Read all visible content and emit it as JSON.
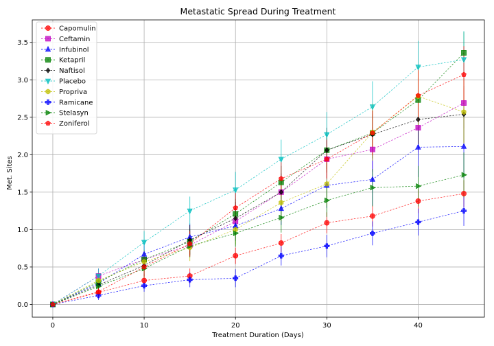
{
  "chart_data": {
    "type": "line",
    "title": "Metastatic Spread During Treatment",
    "xlabel": "Treatment Duration (Days)",
    "ylabel": "Met. Sites",
    "xlim": [
      -2.25,
      47.25
    ],
    "ylim": [
      -0.17,
      3.8
    ],
    "xticks": [
      0,
      10,
      20,
      30,
      40
    ],
    "yticks": [
      0.0,
      0.5,
      1.0,
      1.5,
      2.0,
      2.5,
      3.0,
      3.5
    ],
    "ytick_labels": [
      "0.0",
      "0.5",
      "1.0",
      "1.5",
      "2.0",
      "2.5",
      "3.0",
      "3.5"
    ],
    "grid": true,
    "legend_position": "top-left",
    "x": [
      0,
      5,
      10,
      15,
      20,
      25,
      30,
      35,
      40,
      45
    ],
    "series": [
      {
        "name": "Capomulin",
        "color": "#ff0000",
        "marker": "o",
        "values": [
          0.0,
          0.16,
          0.32,
          0.38,
          0.65,
          0.82,
          1.09,
          1.18,
          1.38,
          1.48
        ],
        "errors": [
          0.0,
          0.07,
          0.09,
          0.1,
          0.11,
          0.12,
          0.14,
          0.14,
          0.16,
          0.18
        ]
      },
      {
        "name": "Ceftamin",
        "color": "#bf00bf",
        "marker": "s",
        "values": [
          0.0,
          0.38,
          0.6,
          0.79,
          1.11,
          1.5,
          1.94,
          2.07,
          2.36,
          2.69
        ],
        "errors": [
          0.0,
          0.1,
          0.12,
          0.15,
          0.18,
          0.2,
          0.25,
          0.3,
          0.33,
          0.34
        ]
      },
      {
        "name": "Infubinol",
        "color": "#0000ff",
        "marker": "^",
        "values": [
          0.0,
          0.28,
          0.67,
          0.9,
          1.05,
          1.28,
          1.59,
          1.67,
          2.1,
          2.11
        ],
        "errors": [
          0.0,
          0.09,
          0.15,
          0.18,
          0.2,
          0.22,
          0.3,
          0.35,
          0.4,
          0.42
        ]
      },
      {
        "name": "Ketapril",
        "color": "#008000",
        "marker": "s",
        "values": [
          0.0,
          0.3,
          0.6,
          0.84,
          1.21,
          1.63,
          2.06,
          2.29,
          2.73,
          3.36
        ],
        "errors": [
          0.0,
          0.1,
          0.13,
          0.17,
          0.2,
          0.22,
          0.25,
          0.25,
          0.3,
          0.28
        ]
      },
      {
        "name": "Naftisol",
        "color": "#000000",
        "marker": "D",
        "values": [
          0.0,
          0.26,
          0.52,
          0.86,
          1.15,
          1.5,
          2.06,
          2.27,
          2.47,
          2.54
        ],
        "errors": [
          0.0,
          0.09,
          0.14,
          0.2,
          0.22,
          0.25,
          0.3,
          0.32,
          0.35,
          0.38
        ]
      },
      {
        "name": "Placebo",
        "color": "#00bfbf",
        "marker": "v",
        "values": [
          0.0,
          0.38,
          0.83,
          1.25,
          1.53,
          1.94,
          2.27,
          2.64,
          3.17,
          3.27
        ],
        "errors": [
          0.0,
          0.1,
          0.15,
          0.19,
          0.24,
          0.26,
          0.3,
          0.34,
          0.35,
          0.38
        ]
      },
      {
        "name": "Propriva",
        "color": "#bfbf00",
        "marker": "h",
        "values": [
          0.0,
          0.32,
          0.57,
          0.76,
          1.0,
          1.36,
          1.61,
          2.3,
          2.78,
          2.57
        ],
        "errors": [
          0.0,
          0.1,
          0.15,
          0.18,
          0.2,
          0.25,
          0.3,
          0.38,
          0.4,
          0.45
        ]
      },
      {
        "name": "Ramicane",
        "color": "#0000ff",
        "marker": "P",
        "values": [
          0.0,
          0.12,
          0.25,
          0.33,
          0.35,
          0.65,
          0.78,
          0.95,
          1.1,
          1.25
        ],
        "errors": [
          0.0,
          0.06,
          0.08,
          0.1,
          0.12,
          0.13,
          0.15,
          0.16,
          0.18,
          0.2
        ]
      },
      {
        "name": "Stelasyn",
        "color": "#008000",
        "marker": ">",
        "values": [
          0.0,
          0.24,
          0.48,
          0.78,
          0.95,
          1.16,
          1.39,
          1.56,
          1.58,
          1.73
        ],
        "errors": [
          0.0,
          0.08,
          0.12,
          0.15,
          0.18,
          0.2,
          0.22,
          0.25,
          0.27,
          0.3
        ]
      },
      {
        "name": "Zoniferol",
        "color": "#ff0000",
        "marker": "p",
        "values": [
          0.0,
          0.17,
          0.5,
          0.81,
          1.29,
          1.68,
          1.94,
          2.29,
          2.79,
          3.07
        ],
        "errors": [
          0.0,
          0.08,
          0.13,
          0.17,
          0.2,
          0.23,
          0.26,
          0.3,
          0.35,
          0.38
        ]
      }
    ]
  }
}
